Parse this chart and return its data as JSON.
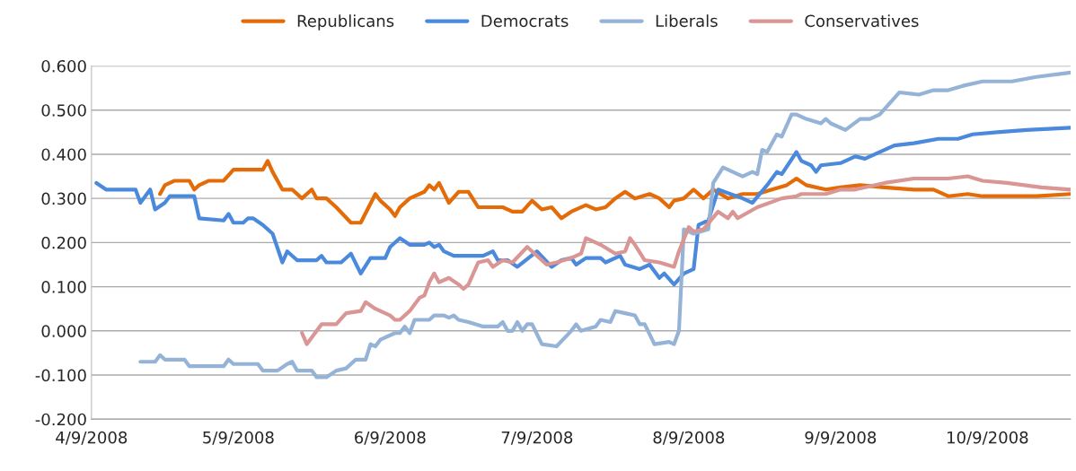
{
  "chart_data": {
    "type": "line",
    "legend": "top",
    "grid": "y",
    "line_style": "solid",
    "marker": "none",
    "xlim": [
      "2008-04-09",
      "2008-10-26"
    ],
    "xticks": [
      {
        "value": "2008-04-09",
        "label": "4/9/2008"
      },
      {
        "value": "2008-05-09",
        "label": "5/9/2008"
      },
      {
        "value": "2008-06-09",
        "label": "6/9/2008"
      },
      {
        "value": "2008-07-09",
        "label": "7/9/2008"
      },
      {
        "value": "2008-08-09",
        "label": "8/9/2008"
      },
      {
        "value": "2008-09-09",
        "label": "9/9/2008"
      },
      {
        "value": "2008-10-09",
        "label": "10/9/2008"
      }
    ],
    "ylim": [
      -0.2,
      0.6
    ],
    "yticks": [
      {
        "value": -0.2,
        "label": "-0.200"
      },
      {
        "value": -0.1,
        "label": "-0.100"
      },
      {
        "value": 0,
        "label": "0.000"
      },
      {
        "value": 0.1,
        "label": "0.100"
      },
      {
        "value": 0.2,
        "label": "0.200"
      },
      {
        "value": 0.3,
        "label": "0.300"
      },
      {
        "value": 0.4,
        "label": "0.400"
      },
      {
        "value": 0.5,
        "label": "0.500"
      },
      {
        "value": 0.6,
        "label": "0.600"
      }
    ],
    "series": [
      {
        "name": "Republicans",
        "color": "#e36c09",
        "x": [
          "2008-04-23",
          "2008-04-24",
          "2008-04-26",
          "2008-04-29",
          "2008-04-30",
          "2008-05-01",
          "2008-05-03",
          "2008-05-06",
          "2008-05-08",
          "2008-05-14",
          "2008-05-15",
          "2008-05-16",
          "2008-05-18",
          "2008-05-20",
          "2008-05-22",
          "2008-05-24",
          "2008-05-25",
          "2008-05-27",
          "2008-05-29",
          "2008-06-01",
          "2008-06-03",
          "2008-06-06",
          "2008-06-07",
          "2008-06-09",
          "2008-06-10",
          "2008-06-11",
          "2008-06-13",
          "2008-06-16",
          "2008-06-17",
          "2008-06-18",
          "2008-06-19",
          "2008-06-21",
          "2008-06-23",
          "2008-06-25",
          "2008-06-27",
          "2008-07-02",
          "2008-07-04",
          "2008-07-06",
          "2008-07-08",
          "2008-07-10",
          "2008-07-12",
          "2008-07-14",
          "2008-07-16",
          "2008-07-19",
          "2008-07-21",
          "2008-07-23",
          "2008-07-25",
          "2008-07-27",
          "2008-07-29",
          "2008-08-01",
          "2008-08-03",
          "2008-08-05",
          "2008-08-06",
          "2008-08-08",
          "2008-08-10",
          "2008-08-12",
          "2008-08-14",
          "2008-08-17",
          "2008-08-20",
          "2008-08-23",
          "2008-08-26",
          "2008-08-29",
          "2008-08-31",
          "2008-09-02",
          "2008-09-06",
          "2008-09-09",
          "2008-09-13",
          "2008-09-18",
          "2008-09-24",
          "2008-09-28",
          "2008-10-01",
          "2008-10-05",
          "2008-10-08",
          "2008-10-19",
          "2008-10-26"
        ],
        "values": [
          0.31,
          0.33,
          0.34,
          0.34,
          0.32,
          0.33,
          0.34,
          0.34,
          0.365,
          0.365,
          0.385,
          0.36,
          0.32,
          0.32,
          0.3,
          0.32,
          0.3,
          0.3,
          0.28,
          0.245,
          0.245,
          0.31,
          0.295,
          0.275,
          0.26,
          0.28,
          0.3,
          0.315,
          0.33,
          0.32,
          0.335,
          0.29,
          0.315,
          0.315,
          0.28,
          0.28,
          0.27,
          0.27,
          0.295,
          0.275,
          0.28,
          0.255,
          0.27,
          0.285,
          0.275,
          0.28,
          0.3,
          0.315,
          0.3,
          0.31,
          0.3,
          0.28,
          0.295,
          0.3,
          0.32,
          0.3,
          0.32,
          0.3,
          0.31,
          0.31,
          0.32,
          0.33,
          0.345,
          0.33,
          0.32,
          0.325,
          0.33,
          0.325,
          0.32,
          0.32,
          0.305,
          0.31,
          0.305,
          0.305,
          0.31
        ]
      },
      {
        "name": "Democrats",
        "color": "#4a89dc",
        "x": [
          "2008-04-10",
          "2008-04-12",
          "2008-04-18",
          "2008-04-19",
          "2008-04-21",
          "2008-04-22",
          "2008-04-24",
          "2008-04-25",
          "2008-04-30",
          "2008-05-01",
          "2008-05-06",
          "2008-05-07",
          "2008-05-08",
          "2008-05-10",
          "2008-05-11",
          "2008-05-12",
          "2008-05-14",
          "2008-05-16",
          "2008-05-18",
          "2008-05-19",
          "2008-05-21",
          "2008-05-25",
          "2008-05-26",
          "2008-05-27",
          "2008-05-30",
          "2008-06-01",
          "2008-06-03",
          "2008-06-05",
          "2008-06-08",
          "2008-06-09",
          "2008-06-11",
          "2008-06-13",
          "2008-06-16",
          "2008-06-17",
          "2008-06-18",
          "2008-06-19",
          "2008-06-20",
          "2008-06-22",
          "2008-06-28",
          "2008-06-30",
          "2008-07-01",
          "2008-07-03",
          "2008-07-05",
          "2008-07-09",
          "2008-07-12",
          "2008-07-14",
          "2008-07-16",
          "2008-07-17",
          "2008-07-19",
          "2008-07-22",
          "2008-07-23",
          "2008-07-26",
          "2008-07-27",
          "2008-07-30",
          "2008-08-01",
          "2008-08-03",
          "2008-08-04",
          "2008-08-06",
          "2008-08-08",
          "2008-08-10",
          "2008-08-11",
          "2008-08-13",
          "2008-08-15",
          "2008-08-20",
          "2008-08-22",
          "2008-08-25",
          "2008-08-27",
          "2008-08-28",
          "2008-08-31",
          "2008-09-01",
          "2008-09-03",
          "2008-09-04",
          "2008-09-05",
          "2008-09-09",
          "2008-09-12",
          "2008-09-14",
          "2008-09-20",
          "2008-09-24",
          "2008-09-29",
          "2008-10-03",
          "2008-10-06",
          "2008-10-11",
          "2008-10-17",
          "2008-10-26"
        ],
        "values": [
          0.335,
          0.32,
          0.32,
          0.29,
          0.32,
          0.275,
          0.29,
          0.305,
          0.305,
          0.255,
          0.25,
          0.265,
          0.245,
          0.245,
          0.255,
          0.255,
          0.24,
          0.22,
          0.155,
          0.18,
          0.16,
          0.16,
          0.17,
          0.155,
          0.155,
          0.175,
          0.13,
          0.165,
          0.165,
          0.19,
          0.21,
          0.195,
          0.195,
          0.2,
          0.19,
          0.195,
          0.18,
          0.17,
          0.17,
          0.18,
          0.16,
          0.16,
          0.145,
          0.18,
          0.145,
          0.16,
          0.165,
          0.15,
          0.165,
          0.165,
          0.155,
          0.17,
          0.15,
          0.14,
          0.15,
          0.12,
          0.13,
          0.105,
          0.13,
          0.14,
          0.24,
          0.25,
          0.32,
          0.3,
          0.29,
          0.33,
          0.36,
          0.355,
          0.405,
          0.385,
          0.375,
          0.36,
          0.375,
          0.38,
          0.395,
          0.39,
          0.42,
          0.425,
          0.435,
          0.435,
          0.445,
          0.45,
          0.455,
          0.46
        ]
      },
      {
        "name": "Liberals",
        "color": "#95b3d7",
        "x": [
          "2008-04-19",
          "2008-04-22",
          "2008-04-23",
          "2008-04-24",
          "2008-04-28",
          "2008-04-29",
          "2008-05-06",
          "2008-05-07",
          "2008-05-08",
          "2008-05-13",
          "2008-05-14",
          "2008-05-17",
          "2008-05-19",
          "2008-05-20",
          "2008-05-21",
          "2008-05-24",
          "2008-05-25",
          "2008-05-27",
          "2008-05-29",
          "2008-05-31",
          "2008-06-02",
          "2008-06-04",
          "2008-06-05",
          "2008-06-06",
          "2008-06-07",
          "2008-06-10",
          "2008-06-11",
          "2008-06-12",
          "2008-06-13",
          "2008-06-14",
          "2008-06-17",
          "2008-06-18",
          "2008-06-20",
          "2008-06-21",
          "2008-06-22",
          "2008-06-23",
          "2008-06-25",
          "2008-06-28",
          "2008-07-01",
          "2008-07-02",
          "2008-07-03",
          "2008-07-04",
          "2008-07-05",
          "2008-07-06",
          "2008-07-07",
          "2008-07-08",
          "2008-07-10",
          "2008-07-13",
          "2008-07-16",
          "2008-07-17",
          "2008-07-18",
          "2008-07-21",
          "2008-07-22",
          "2008-07-24",
          "2008-07-25",
          "2008-07-27",
          "2008-07-29",
          "2008-07-30",
          "2008-07-31",
          "2008-08-02",
          "2008-08-05",
          "2008-08-06",
          "2008-08-07",
          "2008-08-08",
          "2008-08-10",
          "2008-08-13",
          "2008-08-14",
          "2008-08-16",
          "2008-08-18",
          "2008-08-20",
          "2008-08-22",
          "2008-08-23",
          "2008-08-24",
          "2008-08-25",
          "2008-08-27",
          "2008-08-28",
          "2008-08-30",
          "2008-08-31",
          "2008-09-02",
          "2008-09-05",
          "2008-09-06",
          "2008-09-07",
          "2008-09-10",
          "2008-09-13",
          "2008-09-15",
          "2008-09-17",
          "2008-09-21",
          "2008-09-25",
          "2008-09-28",
          "2008-10-01",
          "2008-10-04",
          "2008-10-08",
          "2008-10-14",
          "2008-10-19",
          "2008-10-26"
        ],
        "values": [
          -0.07,
          -0.07,
          -0.055,
          -0.065,
          -0.065,
          -0.08,
          -0.08,
          -0.065,
          -0.075,
          -0.075,
          -0.09,
          -0.09,
          -0.075,
          -0.07,
          -0.09,
          -0.09,
          -0.105,
          -0.105,
          -0.09,
          -0.085,
          -0.065,
          -0.065,
          -0.03,
          -0.035,
          -0.02,
          -0.005,
          -0.005,
          0.01,
          -0.005,
          0.025,
          0.025,
          0.035,
          0.035,
          0.03,
          0.035,
          0.025,
          0.02,
          0.01,
          0.01,
          0.02,
          0.0,
          0.0,
          0.02,
          0.0,
          0.015,
          0.015,
          -0.03,
          -0.035,
          0.0,
          0.015,
          0.0,
          0.01,
          0.025,
          0.02,
          0.045,
          0.04,
          0.035,
          0.015,
          0.015,
          -0.03,
          -0.025,
          -0.03,
          0.0,
          0.23,
          0.22,
          0.23,
          0.335,
          0.37,
          0.36,
          0.35,
          0.36,
          0.355,
          0.41,
          0.405,
          0.445,
          0.44,
          0.49,
          0.49,
          0.48,
          0.47,
          0.48,
          0.47,
          0.455,
          0.48,
          0.48,
          0.49,
          0.54,
          0.535,
          0.545,
          0.545,
          0.555,
          0.565,
          0.565,
          0.575,
          0.585
        ]
      },
      {
        "name": "Conservatives",
        "color": "#d99694",
        "x": [
          "2008-05-22",
          "2008-05-23",
          "2008-05-25",
          "2008-05-26",
          "2008-05-29",
          "2008-05-31",
          "2008-06-03",
          "2008-06-04",
          "2008-06-06",
          "2008-06-07",
          "2008-06-09",
          "2008-06-10",
          "2008-06-11",
          "2008-06-13",
          "2008-06-15",
          "2008-06-16",
          "2008-06-17",
          "2008-06-18",
          "2008-06-19",
          "2008-06-21",
          "2008-06-23",
          "2008-06-24",
          "2008-06-25",
          "2008-06-27",
          "2008-06-29",
          "2008-06-30",
          "2008-07-02",
          "2008-07-04",
          "2008-07-07",
          "2008-07-11",
          "2008-07-13",
          "2008-07-16",
          "2008-07-18",
          "2008-07-19",
          "2008-07-21",
          "2008-07-22",
          "2008-07-25",
          "2008-07-27",
          "2008-07-28",
          "2008-07-29",
          "2008-07-31",
          "2008-08-03",
          "2008-08-06",
          "2008-08-07",
          "2008-08-09",
          "2008-08-10",
          "2008-08-12",
          "2008-08-15",
          "2008-08-17",
          "2008-08-18",
          "2008-08-19",
          "2008-08-23",
          "2008-08-28",
          "2008-08-31",
          "2008-09-01",
          "2008-09-06",
          "2008-09-09",
          "2008-09-12",
          "2008-09-18",
          "2008-09-24",
          "2008-10-01",
          "2008-10-05",
          "2008-10-08",
          "2008-10-13",
          "2008-10-20",
          "2008-10-26"
        ],
        "values": [
          -0.005,
          -0.03,
          0.0,
          0.015,
          0.015,
          0.04,
          0.045,
          0.065,
          0.05,
          0.045,
          0.035,
          0.025,
          0.025,
          0.045,
          0.075,
          0.08,
          0.11,
          0.13,
          0.11,
          0.12,
          0.105,
          0.095,
          0.105,
          0.155,
          0.16,
          0.145,
          0.16,
          0.155,
          0.19,
          0.15,
          0.155,
          0.165,
          0.175,
          0.21,
          0.2,
          0.195,
          0.175,
          0.18,
          0.21,
          0.195,
          0.16,
          0.155,
          0.145,
          0.18,
          0.235,
          0.225,
          0.23,
          0.27,
          0.255,
          0.27,
          0.255,
          0.28,
          0.3,
          0.305,
          0.31,
          0.31,
          0.32,
          0.32,
          0.335,
          0.345,
          0.345,
          0.35,
          0.34,
          0.335,
          0.325,
          0.32
        ]
      }
    ]
  }
}
